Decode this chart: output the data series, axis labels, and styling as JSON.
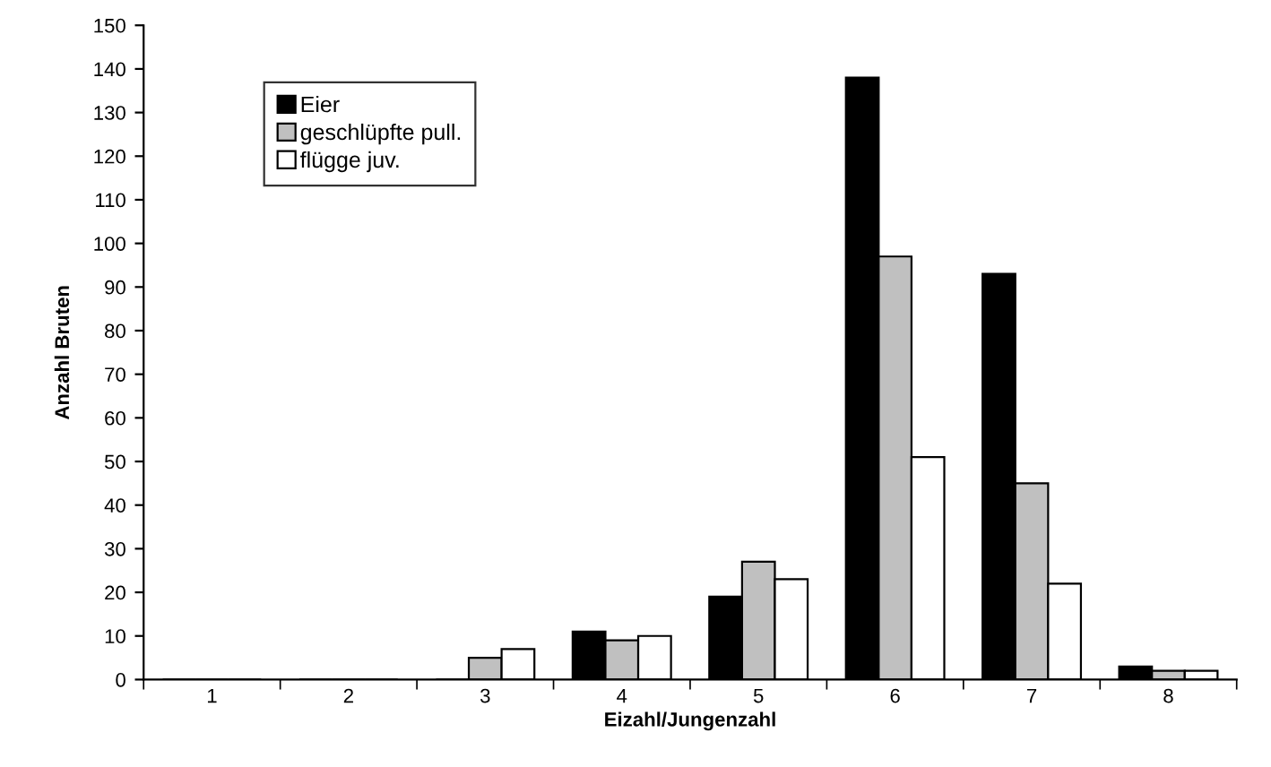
{
  "chart_data": {
    "type": "bar",
    "xlabel": "Eizahl/Jungenzahl",
    "ylabel": "Anzahl Bruten",
    "categories": [
      "1",
      "2",
      "3",
      "4",
      "5",
      "6",
      "7",
      "8"
    ],
    "series": [
      {
        "name": "Eier",
        "color": "#000000",
        "values": [
          0,
          0,
          0,
          11,
          19,
          138,
          93,
          3
        ]
      },
      {
        "name": "geschlüpfte pull.",
        "color": "#c0c0c0",
        "values": [
          0,
          0,
          5,
          9,
          27,
          97,
          45,
          2
        ]
      },
      {
        "name": "flügge juv.",
        "color": "#ffffff",
        "values": [
          0,
          0,
          7,
          10,
          23,
          51,
          22,
          2
        ]
      }
    ],
    "ylim": [
      0,
      150
    ],
    "yticks": [
      0,
      10,
      20,
      30,
      40,
      50,
      60,
      70,
      80,
      90,
      100,
      110,
      120,
      130,
      140,
      150
    ],
    "grid": false,
    "legend": "top left"
  }
}
